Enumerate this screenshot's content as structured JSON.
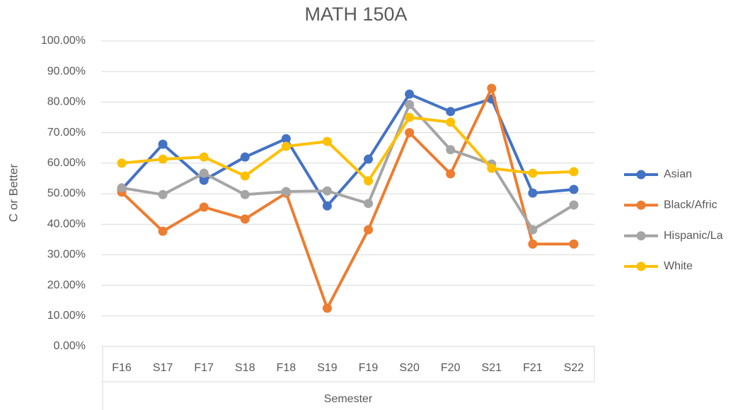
{
  "chart_data": {
    "type": "line",
    "title": "MATH 150A",
    "x_label": "Semester",
    "y_label": "C or Better",
    "categories": [
      "F16",
      "S17",
      "F17",
      "S18",
      "F18",
      "S19",
      "F19",
      "S20",
      "F20",
      "S21",
      "F21",
      "S22"
    ],
    "series": [
      {
        "name": "Asian",
        "color": "#4472c4",
        "values": [
          51.4,
          66.2,
          54.4,
          62,
          68,
          46,
          61.3,
          82.6,
          76.9,
          81,
          50.2,
          51.4
        ]
      },
      {
        "name": "Black/Afric",
        "color": "#ed7d31",
        "values": [
          50.5,
          37.7,
          45.6,
          41.7,
          50.2,
          12.5,
          38.2,
          70,
          56.5,
          84.5,
          33.5,
          33.5
        ]
      },
      {
        "name": "Hispanic/La",
        "color": "#a5a5a5",
        "values": [
          51.9,
          49.7,
          56.7,
          49.7,
          50.7,
          50.9,
          46.8,
          79.2,
          64.4,
          59.7,
          38.2,
          46.3
        ]
      },
      {
        "name": "White",
        "color": "#ffc000",
        "values": [
          60,
          61.3,
          62,
          55.8,
          65.5,
          67.1,
          54.2,
          75,
          73.4,
          58.3,
          56.7,
          57.2
        ]
      }
    ],
    "ylim": [
      0,
      100
    ],
    "yticks": [
      {
        "value": 0,
        "label": "0.00%"
      },
      {
        "value": 10,
        "label": "10.00%"
      },
      {
        "value": 20,
        "label": "20.00%"
      },
      {
        "value": 30,
        "label": "30.00%"
      },
      {
        "value": 40,
        "label": "40.00%"
      },
      {
        "value": 50,
        "label": "50.00%"
      },
      {
        "value": 60,
        "label": "60.00%"
      },
      {
        "value": 70,
        "label": "70.00%"
      },
      {
        "value": 80,
        "label": "80.00%"
      },
      {
        "value": 90,
        "label": "90.00%"
      },
      {
        "value": 100,
        "label": "100.00%"
      }
    ],
    "grid": true,
    "legend": "right"
  }
}
